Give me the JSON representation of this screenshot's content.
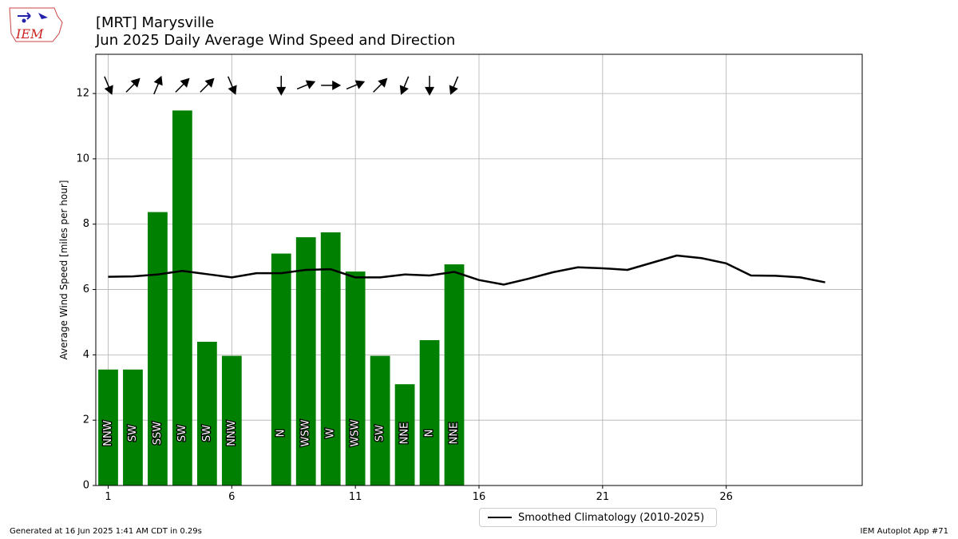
{
  "header": {
    "title_line1": "[MRT] Marysville",
    "title_line2": "Jun 2025 Daily Average Wind Speed and Direction",
    "logo_text": "IEM"
  },
  "footer": {
    "generated": "Generated at 16 Jun 2025 1:41 AM CDT in 0.29s",
    "app": "IEM Autoplot App #71"
  },
  "legend": {
    "label": "Smoothed Climatology (2010-2025)"
  },
  "colors": {
    "bar": "#008000",
    "climo_line": "#000000",
    "grid": "#b0b0b0"
  },
  "chart_data": {
    "type": "bar",
    "ylabel": "Average Wind Speed [miles per hour]",
    "xlabel": "",
    "xlim": [
      0.5,
      31.5
    ],
    "ylim": [
      0,
      13.2
    ],
    "xticks": [
      1,
      6,
      11,
      16,
      21,
      26
    ],
    "yticks": [
      0,
      2,
      4,
      6,
      8,
      10,
      12
    ],
    "grid": true,
    "legend_position": "bottom-center",
    "bars": {
      "days": [
        1,
        2,
        3,
        4,
        5,
        6,
        8,
        9,
        10,
        11,
        12,
        13,
        14,
        15
      ],
      "values": [
        3.55,
        3.55,
        8.37,
        11.48,
        4.4,
        3.97,
        7.1,
        7.6,
        7.75,
        6.55,
        3.97,
        3.1,
        4.45,
        6.77
      ],
      "directions": [
        "NNW",
        "SW",
        "SSW",
        "SW",
        "SW",
        "NNW",
        "N",
        "WSW",
        "W",
        "WSW",
        "SW",
        "NNE",
        "N",
        "NNE"
      ]
    },
    "series": [
      {
        "name": "Smoothed Climatology (2010-2025)",
        "x": [
          1,
          2,
          3,
          4,
          5,
          6,
          7,
          8,
          9,
          10,
          11,
          12,
          13,
          14,
          15,
          16,
          17,
          18,
          19,
          20,
          21,
          22,
          23,
          24,
          25,
          26,
          27,
          28,
          29,
          30
        ],
        "values": [
          6.39,
          6.4,
          6.46,
          6.57,
          6.47,
          6.37,
          6.5,
          6.5,
          6.6,
          6.62,
          6.37,
          6.37,
          6.46,
          6.43,
          6.54,
          6.29,
          6.15,
          6.33,
          6.53,
          6.68,
          6.65,
          6.6,
          6.82,
          7.04,
          6.96,
          6.8,
          6.43,
          6.42,
          6.37,
          6.22
        ]
      }
    ],
    "arrows": {
      "days": [
        1,
        2,
        3,
        4,
        5,
        6,
        8,
        9,
        10,
        11,
        12,
        13,
        14,
        15
      ],
      "directions": [
        "NNW",
        "SW",
        "SSW",
        "SW",
        "SW",
        "NNW",
        "N",
        "WSW",
        "W",
        "WSW",
        "SW",
        "NNE",
        "N",
        "NNE"
      ]
    }
  }
}
